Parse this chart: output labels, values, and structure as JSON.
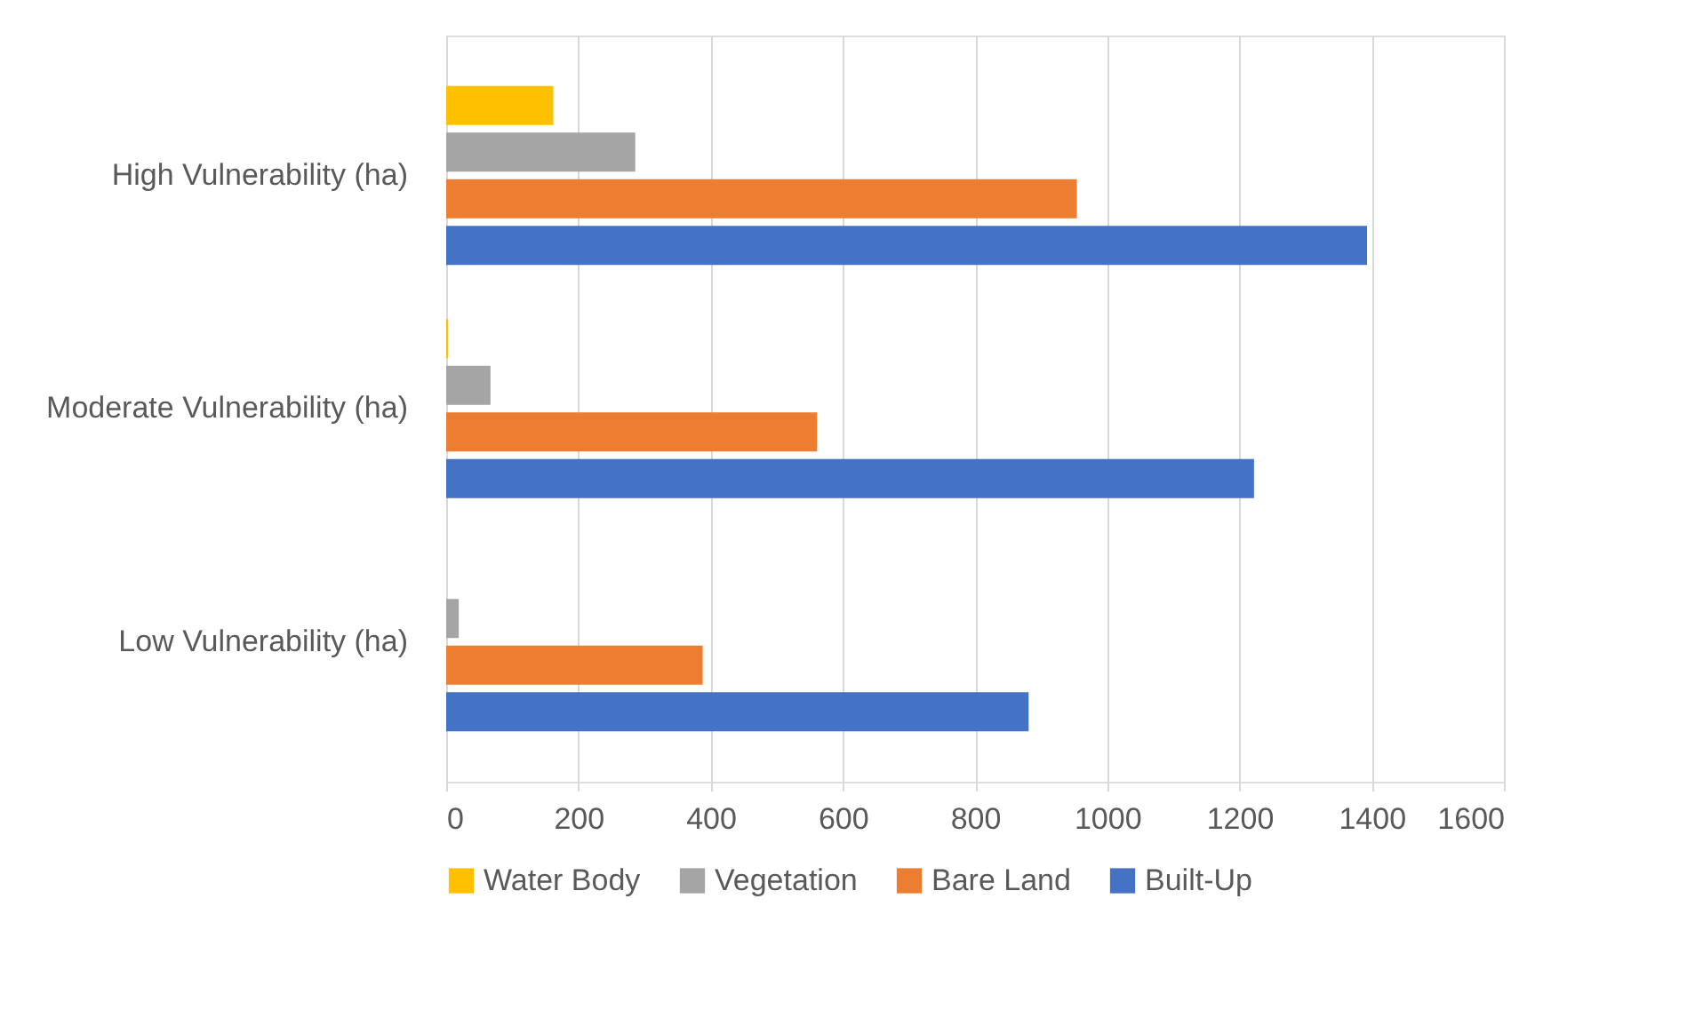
{
  "chart_data": {
    "type": "bar",
    "orientation": "horizontal",
    "categories": [
      "High Vulnerability (ha)",
      "Moderate Vulnerability (ha)",
      "Low Vulnerability (ha)"
    ],
    "series": [
      {
        "name": "Water Body",
        "color": "#ffc000",
        "values": [
          162,
          3,
          0
        ]
      },
      {
        "name": "Vegetation",
        "color": "#a5a5a5",
        "values": [
          286,
          67,
          19
        ]
      },
      {
        "name": "Bare Land",
        "color": "#ed7d31",
        "values": [
          954,
          561,
          388
        ]
      },
      {
        "name": "Built-Up",
        "color": "#4472c4",
        "values": [
          1393,
          1222,
          881
        ]
      }
    ],
    "xlim": [
      0,
      1600
    ],
    "xticks": [
      0,
      200,
      400,
      600,
      800,
      1000,
      1200,
      1400,
      1600
    ],
    "grid": "x",
    "legend": "bottom"
  }
}
